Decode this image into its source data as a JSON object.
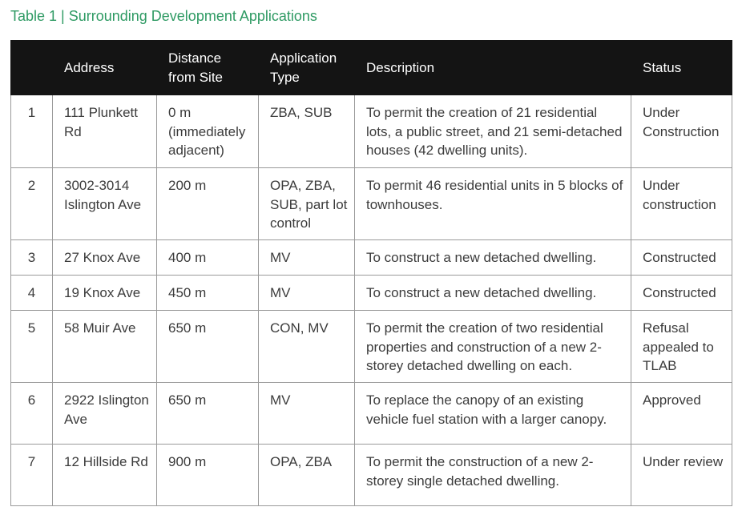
{
  "title": "Table 1 | Surrounding Development Applications",
  "table": {
    "header": [
      "",
      "Address",
      "Distance from Site",
      "Application Type",
      "Description",
      "Status"
    ],
    "rows": [
      [
        "1",
        "111 Plunkett Rd",
        "0 m (immediately adjacent)",
        "ZBA, SUB",
        "To permit the creation of 21 residential lots, a public street, and 21 semi-detached houses (42 dwelling units).",
        "Under Construction"
      ],
      [
        "2",
        "3002-3014 Islington Ave",
        "200 m",
        "OPA, ZBA, SUB, part lot control",
        "To permit 46 residential units in 5 blocks of townhouses.",
        "Under construction"
      ],
      [
        "3",
        "27 Knox Ave",
        "400 m",
        "MV",
        "To construct a new detached dwelling.",
        "Constructed"
      ],
      [
        "4",
        "19 Knox Ave",
        "450 m",
        "MV",
        "To construct a new detached dwelling.",
        "Constructed"
      ],
      [
        "5",
        "58 Muir Ave",
        "650 m",
        "CON, MV",
        "To permit the creation of two residential properties and construction of a new 2-storey detached dwelling on each.",
        "Refusal appealed to TLAB"
      ],
      [
        "6",
        "2922 Islington Ave",
        "650 m",
        "MV",
        "To replace the canopy of an existing vehicle fuel station with a larger canopy.",
        "Approved"
      ],
      [
        "7",
        "12 Hillside Rd",
        "900 m",
        "OPA, ZBA",
        "To permit the construction of a new 2-storey single detached dwelling.",
        "Under review"
      ]
    ]
  }
}
